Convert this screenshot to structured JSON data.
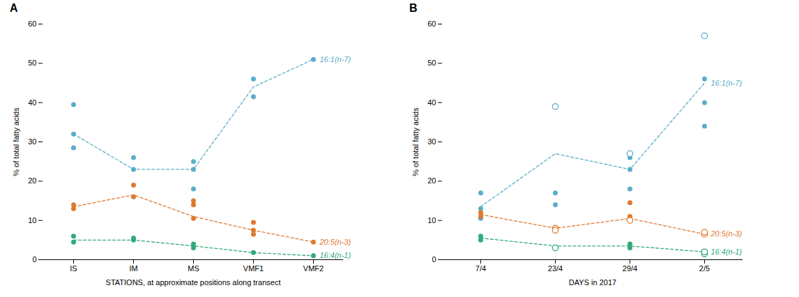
{
  "chart_data": [
    {
      "type": "line",
      "title": "A",
      "categories": [
        "IS",
        "IM",
        "MS",
        "VMF1",
        "VMF2"
      ],
      "xlabel": "STATIONS, at approximate positions along transect",
      "ylabel": "% of total fatty acids",
      "ylim": [
        0,
        60
      ],
      "yticks": [
        0,
        10,
        20,
        30,
        40,
        50,
        60
      ],
      "grid": false,
      "series": [
        {
          "name": "16:1(n-7)",
          "color": "#5AAEC8",
          "line_style": "dashed",
          "marker": "o",
          "values": [
            32.0,
            23.0,
            23.0,
            44.0,
            51.0
          ],
          "points": [
            [
              39.5,
              32.0,
              28.5
            ],
            [
              23.0,
              26.0
            ],
            [
              25.0,
              23.0,
              18.0
            ],
            [
              46.0,
              41.5
            ],
            [
              51.0
            ]
          ]
        },
        {
          "name": "20:5(n-3)",
          "color": "#E07830",
          "line_style": "dashed",
          "marker": "o",
          "values": [
            13.5,
            16.5,
            11.0,
            7.5,
            4.5
          ],
          "points": [
            [
              14.0,
              13.0
            ],
            [
              19.0,
              16.0
            ],
            [
              15.0,
              10.5,
              14.0
            ],
            [
              9.5,
              6.5,
              7.5
            ],
            [
              4.5
            ]
          ]
        },
        {
          "name": "16:4(n-1)",
          "color": "#30AA78",
          "line_style": "dashed",
          "marker": "o",
          "values": [
            5.0,
            5.0,
            3.5,
            1.8,
            1.0
          ],
          "points": [
            [
              6.0,
              4.5
            ],
            [
              5.5,
              5.0
            ],
            [
              4.0,
              3.0
            ],
            [
              1.8
            ],
            [
              1.0
            ]
          ]
        }
      ]
    },
    {
      "type": "line",
      "title": "B",
      "categories": [
        "7/4",
        "23/4",
        "29/4",
        "2/5"
      ],
      "xlabel": "DAYS in 2017",
      "ylabel": "% of total fatty acids",
      "ylim": [
        0,
        60
      ],
      "yticks": [
        0,
        10,
        20,
        30,
        40,
        50,
        60
      ],
      "grid": false,
      "series": [
        {
          "name": "16:1(n-7)",
          "color": "#5AAEC8",
          "line_style": "dashed",
          "marker": "o",
          "values": [
            13.5,
            27.0,
            23.0,
            45.0
          ],
          "points": [
            [
              17.0,
              13.0,
              10.5
            ],
            [
              17.0,
              14.0
            ],
            [
              18.0,
              23.0,
              26.0
            ],
            [
              34.0,
              40.0,
              46.0
            ]
          ],
          "open_points": [
            [],
            [
              39.0
            ],
            [
              27.0
            ],
            [
              57.0
            ]
          ]
        },
        {
          "name": "20:5(n-3)",
          "color": "#E07830",
          "line_style": "dashed",
          "marker": "o",
          "values": [
            11.5,
            8.0,
            10.5,
            6.5
          ],
          "points": [
            [
              12.0,
              11.0
            ],
            [],
            [
              11.0,
              10.0,
              14.5
            ],
            []
          ],
          "open_points": [
            [],
            [
              8.0,
              7.5
            ],
            [
              10.0
            ],
            [
              6.5,
              7.0
            ]
          ]
        },
        {
          "name": "16:4(n-1)",
          "color": "#30AA78",
          "line_style": "dashed",
          "marker": "o",
          "values": [
            5.5,
            3.5,
            3.5,
            2.0
          ],
          "points": [
            [
              6.0,
              5.0
            ],
            [],
            [
              4.0,
              3.0
            ],
            [
              2.0
            ]
          ],
          "open_points": [
            [],
            [
              3.0
            ],
            [],
            [
              1.5,
              2.0
            ]
          ]
        }
      ]
    }
  ]
}
